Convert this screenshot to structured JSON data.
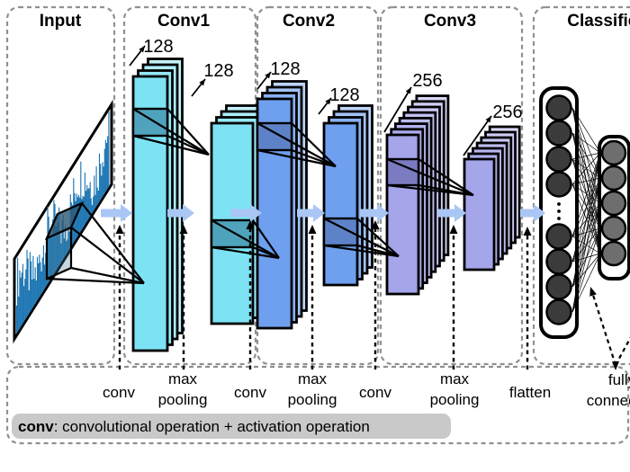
{
  "diagram": {
    "type": "cnn-architecture"
  },
  "titles": {
    "input": "Input",
    "conv1": "Conv1",
    "conv2": "Conv2",
    "conv3": "Conv3",
    "classifier": "Classifier"
  },
  "channel_labels": {
    "conv1_a": "128",
    "conv1_b": "128",
    "conv2_a": "128",
    "conv2_b": "128",
    "conv3_a": "256",
    "conv3_b": "256"
  },
  "operation_labels": {
    "conv1": "conv",
    "pool1a": "max",
    "pool1b": "pooling",
    "conv2": "conv",
    "pool2a": "max",
    "pool2b": "pooling",
    "conv3": "conv",
    "pool3a": "max",
    "pool3b": "pooling",
    "flatten": "flatten",
    "fca": "fully",
    "fcb": "connected"
  },
  "legend": {
    "term": "conv",
    "definition": ": convolutional operation + activation operation"
  },
  "colors": {
    "conv1_map": "#7DE3F4",
    "conv1_kernel": "#4FA3BC",
    "conv2_map": "#6F9FEF",
    "conv2_kernel": "#5E82C8",
    "conv3_map": "#A5A5EA",
    "conv3_kernel": "#7B7BC2",
    "flow_arrow": "#A9C6F5",
    "waveform": "#1F77B4",
    "legend_bg": "#C9C9C9",
    "neuron_dark": "#3B3B3B",
    "neuron_gray": "#6E6E6E",
    "box_dash": "#909090"
  }
}
